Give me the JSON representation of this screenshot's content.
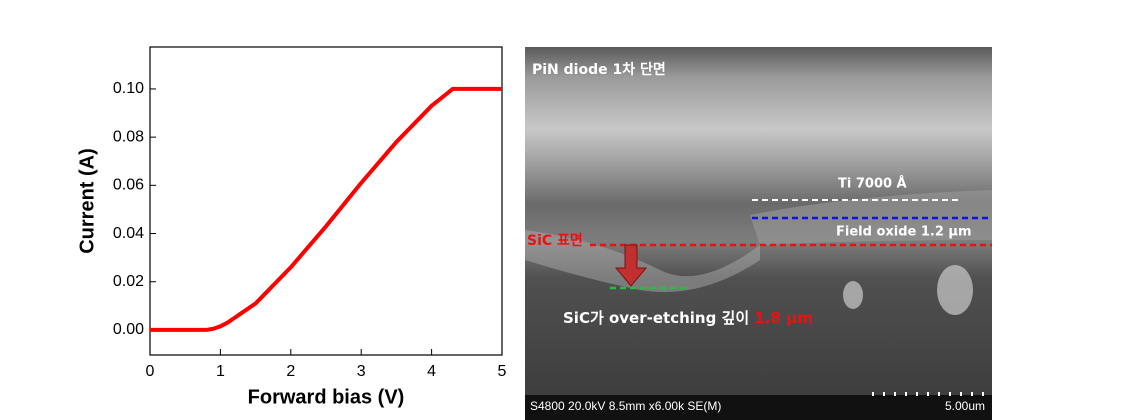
{
  "chart_data": {
    "type": "line",
    "xlabel": "Forward bias (V)",
    "ylabel": "Current (A)",
    "x": [
      0,
      0.5,
      0.8,
      0.9,
      1.0,
      1.1,
      1.2,
      1.3,
      1.5,
      2.0,
      2.5,
      3.0,
      3.5,
      4.0,
      4.3,
      4.5,
      5.0
    ],
    "values": [
      0,
      0,
      0,
      0.0005,
      0.0015,
      0.003,
      0.005,
      0.007,
      0.011,
      0.026,
      0.043,
      0.061,
      0.078,
      0.093,
      0.1,
      0.1,
      0.1
    ],
    "color": "#ff0000",
    "xlim": [
      0,
      5
    ],
    "ylim": [
      -0.0104,
      0.1174
    ],
    "xticks": [
      0,
      1,
      2,
      3,
      4,
      5
    ],
    "yticks": [
      {
        "value": 0,
        "label": "0.00"
      },
      {
        "value": 0.02,
        "label": "0.02"
      },
      {
        "value": 0.04,
        "label": "0.04"
      },
      {
        "value": 0.06,
        "label": "0.06"
      },
      {
        "value": 0.08,
        "label": "0.08"
      },
      {
        "value": 0.1,
        "label": "0.10"
      }
    ]
  },
  "image_annotations": {
    "title": "PiN diode 1차 단면",
    "ti": "Ti 7000 Å",
    "oxide": "Field oxide 1.2 μm",
    "surface": "SiC 표면",
    "depth_text": "SiC가 over-etching 깊이 ",
    "depth_value": "1.8 μm",
    "info": "S4800 20.0kV 8.5mm x6.00k SE(M)",
    "scale": "5.00um"
  }
}
